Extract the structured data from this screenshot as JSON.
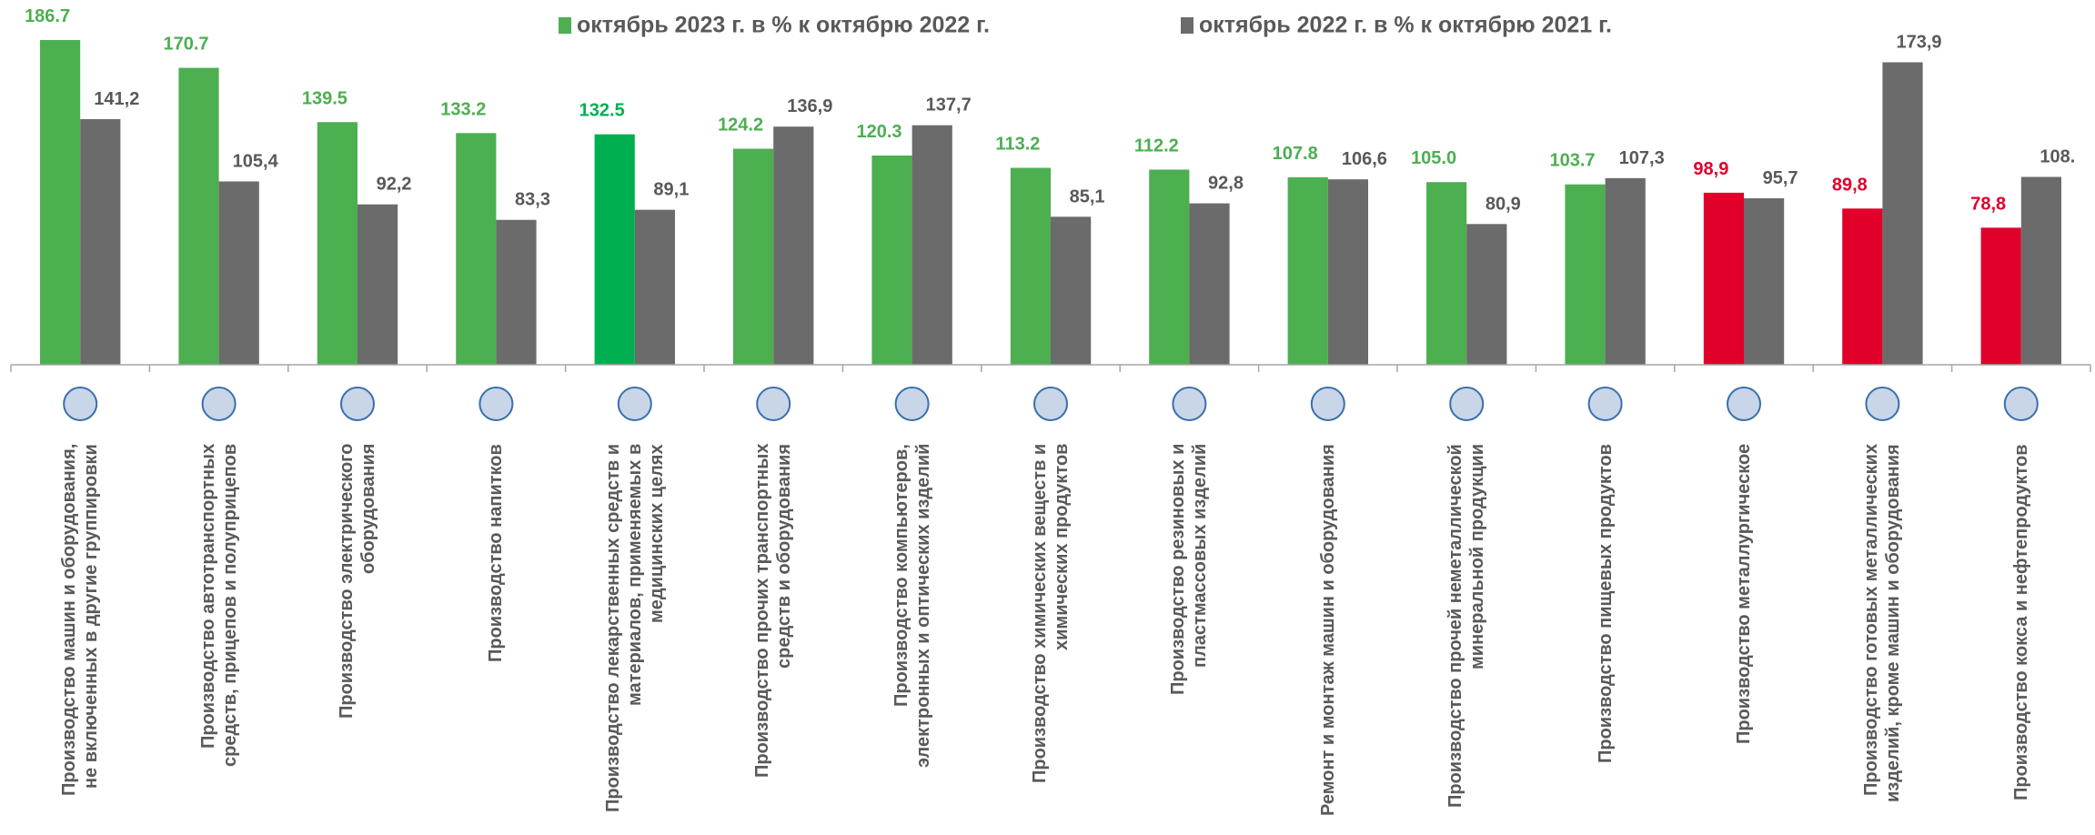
{
  "chart_data": {
    "type": "bar",
    "categories": [
      "Производство машин и оборудования, не включенных в другие группировки",
      "Производство автотранспортных средств, прицепов и полуприцепов",
      "Производство электрического оборудования",
      "Производство напитков",
      "Производство лекарственных средств и материалов, применяемых в медицинских целях",
      "Производство прочих транспортных средств и оборудования",
      "Производство компьютеров, электронных и оптических изделий",
      "Производство химических веществ и химических продуктов",
      "Производство резиновых и пластмассовых изделий",
      "Ремонт и монтаж машин и оборудования",
      "Производство прочей неметаллической минеральной продукции",
      "Производство пищевых продуктов",
      "Производство металлургическое",
      "Производство готовых металлических изделий, кроме машин и оборудования",
      "Производство кокса и нефтепродуктов"
    ],
    "series": [
      {
        "name": "октябрь 2023 г. в % к октябрю 2022 г.",
        "color": "#4caf50",
        "colors": [
          "#4caf50",
          "#4caf50",
          "#4caf50",
          "#4caf50",
          "#00b050",
          "#4caf50",
          "#4caf50",
          "#4caf50",
          "#4caf50",
          "#4caf50",
          "#4caf50",
          "#4caf50",
          "#e0002a",
          "#e0002a",
          "#e0002a"
        ],
        "values": [
          186.7,
          170.7,
          139.5,
          133.2,
          132.5,
          124.2,
          120.3,
          113.2,
          112.2,
          107.8,
          105.0,
          103.7,
          98.9,
          89.8,
          78.8
        ],
        "value_labels": [
          "186.7",
          "170.7",
          "139.5",
          "133.2",
          "132.5",
          "124.2",
          "120.3",
          "113.2",
          "112.2",
          "107.8",
          "105.0",
          "103.7",
          "98,9",
          "89,8",
          "78,8"
        ]
      },
      {
        "name": "октябрь 2022 г. в % к октябрю 2021 г.",
        "color": "#6b6b6b",
        "values": [
          141.2,
          105.4,
          92.2,
          83.3,
          89.1,
          136.9,
          137.7,
          85.1,
          92.8,
          106.6,
          80.9,
          107.3,
          95.7,
          173.9,
          108
        ],
        "value_labels": [
          "141,2",
          "105,4",
          "92,2",
          "83,3",
          "89,1",
          "136,9",
          "137,7",
          "85,1",
          "92,8",
          "106,6",
          "80,9",
          "107,3",
          "95,7",
          "173,9",
          "108."
        ]
      }
    ]
  }
}
